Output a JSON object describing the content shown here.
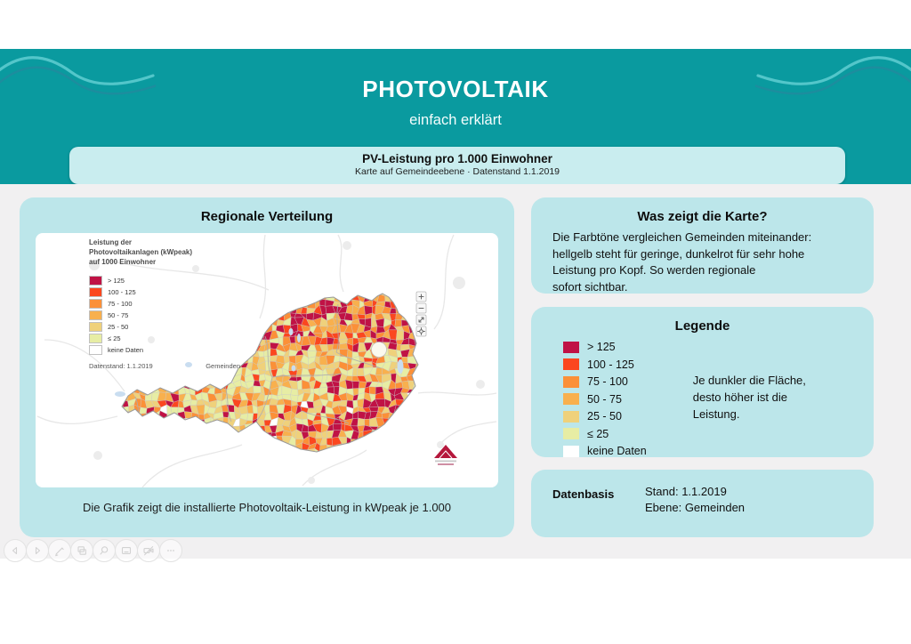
{
  "header": {
    "title": "PHOTOVOLTAIK",
    "subtitle": "einfach erklärt",
    "banner": {
      "title": "PV-Leistung pro 1.000 Einwohner",
      "subtitle": "Karte auf Gemeindeebene · Datenstand 1.1.2019"
    }
  },
  "map_panel": {
    "title": "Regionale Verteilung",
    "caption": "Die Grafik zeigt die installierte Photovoltaik-Leistung in kWpeak je 1.000",
    "map": {
      "legend_title": "Leistung der\nPhotovoltaikanlagen (kWpeak)\nauf 1000 Einwohner",
      "classes": [
        {
          "label": "> 125",
          "color": "#c01245"
        },
        {
          "label": "100 - 125",
          "color": "#fb471f"
        },
        {
          "label": "75 - 100",
          "color": "#fb9038"
        },
        {
          "label": "50 - 75",
          "color": "#f8b04e"
        },
        {
          "label": "25 - 50",
          "color": "#efd17b"
        },
        {
          "label": "≤ 25",
          "color": "#e7eda4"
        },
        {
          "label": "keine Daten",
          "color": "#ffffff"
        }
      ],
      "footer": {
        "datenstand": "Datenstand: 1.1.2019",
        "level": "Gemeinden"
      },
      "controls": [
        "zoom-in",
        "zoom-out",
        "fullscreen",
        "locate"
      ]
    }
  },
  "info_panel": {
    "title": "Was zeigt die Karte?",
    "body": "Die Farbtöne vergleichen Gemeinden miteinander:\nhellgelb steht für geringe, dunkelrot für sehr hohe\nLeistung pro Kopf. So werden regionale\nsofort sichtbar."
  },
  "legend_panel": {
    "title": "Legende",
    "note": "Je dunkler die Fläche,\ndesto höher ist die\nLeistung."
  },
  "data_panel": {
    "label": "Datenbasis",
    "value": "Stand: 1.1.2019\nEbene: Gemeinden"
  },
  "toolbar": {
    "buttons": [
      "previous",
      "next",
      "pen",
      "slides",
      "zoom",
      "screen",
      "camera-off",
      "more"
    ]
  },
  "colors": {
    "teal_band": "#0a9a9f",
    "panel_teal": "#bce6ea",
    "banner_teal": "#c9edef",
    "page_gray": "#f1f0f1"
  }
}
